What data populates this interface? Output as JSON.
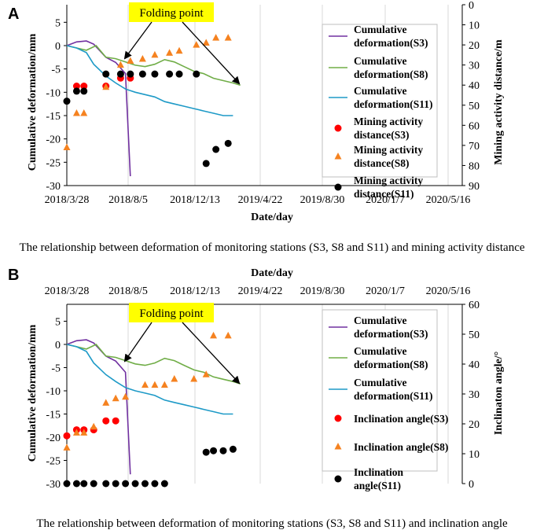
{
  "chart_data": [
    {
      "panel": "A",
      "type": "line",
      "title": "",
      "xlabel": "Date/day",
      "ylabel": "Cumulative deformation/mm",
      "y2label": "Mining activity distance/m",
      "x_tick_labels": [
        "2018/3/28",
        "2018/8/5",
        "2018/12/13",
        "2019/4/22",
        "2019/8/30",
        "2020/1/7",
        "2020/5/16"
      ],
      "xlim": [
        0,
        780
      ],
      "ylim": [
        -30,
        10
      ],
      "y_ticks": [
        5,
        0,
        -5,
        -10,
        -15,
        -20,
        -25,
        -30
      ],
      "y2lim": [
        0,
        90
      ],
      "y2_ticks": [
        0,
        10,
        20,
        30,
        40,
        50,
        60,
        70,
        80,
        90
      ],
      "annotation": "Folding point",
      "caption": "The relationship between deformation of monitoring stations (S3, S8 and S11) and mining activity distance",
      "series": [
        {
          "name": "Cumulative deformation(S3)",
          "axis": "left",
          "kind": "line",
          "color": "#7030A0",
          "x": [
            0,
            20,
            40,
            55,
            80,
            100,
            120,
            130
          ],
          "y": [
            0,
            0.8,
            1,
            0.3,
            -2.5,
            -3.6,
            -6,
            -28
          ]
        },
        {
          "name": "Cumulative deformation(S8)",
          "axis": "left",
          "kind": "line",
          "color": "#70AD47",
          "x": [
            0,
            20,
            40,
            60,
            80,
            100,
            120,
            140,
            160,
            180,
            200,
            220,
            240,
            260,
            280,
            300,
            320,
            340,
            355
          ],
          "y": [
            0,
            -0.5,
            -1,
            0,
            -2.5,
            -2.8,
            -3.5,
            -4.2,
            -4.5,
            -4,
            -3,
            -3.5,
            -4.5,
            -5.5,
            -6,
            -7,
            -7.5,
            -8,
            -8.5
          ]
        },
        {
          "name": "Cumulative deformation(S11)",
          "axis": "left",
          "kind": "line",
          "color": "#1E9AC7",
          "x": [
            0,
            20,
            40,
            55,
            80,
            100,
            120,
            140,
            160,
            180,
            200,
            220,
            240,
            260,
            280,
            300,
            320,
            340
          ],
          "y": [
            0,
            -0.5,
            -1.5,
            -4,
            -6.5,
            -8,
            -9.3,
            -10,
            -10.5,
            -11,
            -12,
            -12.5,
            -13,
            -13.5,
            -14,
            -14.5,
            -15,
            -15
          ]
        },
        {
          "name": "Mining activity distance(S3)",
          "axis": "right",
          "kind": "scatter",
          "marker": "circle",
          "color": "#FF0000",
          "x": [
            20,
            35,
            80,
            110,
            130
          ],
          "y": [
            40.5,
            40.5,
            40.5,
            36.5,
            36.5
          ]
        },
        {
          "name": "Mining activity distance(S8)",
          "axis": "right",
          "kind": "scatter",
          "marker": "triangle",
          "color": "#F58220",
          "x": [
            0,
            20,
            35,
            80,
            110,
            130,
            155,
            180,
            210,
            230,
            265,
            285,
            305,
            330
          ],
          "y": [
            71,
            54,
            54,
            41,
            30,
            28,
            27,
            25,
            24,
            23,
            20,
            19,
            16.5,
            16.5
          ]
        },
        {
          "name": "Mining activity distance(S11)",
          "axis": "right",
          "kind": "scatter",
          "marker": "circle",
          "color": "#000000",
          "x": [
            0,
            20,
            35,
            80,
            110,
            130,
            155,
            180,
            210,
            230,
            265,
            285,
            305,
            330
          ],
          "y": [
            48,
            43,
            43,
            34.5,
            34.5,
            34.5,
            34.5,
            34.5,
            34.5,
            34.5,
            34.5,
            79,
            72,
            69
          ]
        }
      ]
    },
    {
      "panel": "B",
      "type": "line",
      "title": "",
      "xlabel": "Date/day",
      "ylabel": "Cumulative deformation/mm",
      "y2label": "Inclinaton angle/°",
      "x_tick_labels": [
        "2018/3/28",
        "2018/8/5",
        "2018/12/13",
        "2019/4/22",
        "2019/8/30",
        "2020/1/7",
        "2020/5/16"
      ],
      "xlim": [
        0,
        780
      ],
      "ylim": [
        -30,
        10
      ],
      "y_ticks": [
        5,
        0,
        -5,
        -10,
        -15,
        -20,
        -25,
        -30
      ],
      "y2lim": [
        0,
        60
      ],
      "y2_ticks": [
        0,
        10,
        20,
        30,
        40,
        50,
        60
      ],
      "annotation": "Folding point",
      "caption": "The relationship between deformation of monitoring stations (S3, S8 and S11) and inclination angle",
      "series": [
        {
          "name": "Cumulative deformation(S3)",
          "axis": "left",
          "kind": "line",
          "color": "#7030A0",
          "x": [
            0,
            20,
            40,
            55,
            80,
            100,
            120,
            130
          ],
          "y": [
            0,
            0.8,
            1,
            0.3,
            -2.5,
            -3.6,
            -6,
            -28
          ]
        },
        {
          "name": "Cumulative deformation(S8)",
          "axis": "left",
          "kind": "line",
          "color": "#70AD47",
          "x": [
            0,
            20,
            40,
            60,
            80,
            100,
            120,
            140,
            160,
            180,
            200,
            220,
            240,
            260,
            280,
            300,
            320,
            340,
            355
          ],
          "y": [
            0,
            -0.5,
            -1,
            0,
            -2.5,
            -2.8,
            -3.5,
            -4.2,
            -4.5,
            -4,
            -3,
            -3.5,
            -4.5,
            -5.5,
            -6,
            -7,
            -7.5,
            -8,
            -8.5
          ]
        },
        {
          "name": "Cumulative deformation(S11)",
          "axis": "left",
          "kind": "line",
          "color": "#1E9AC7",
          "x": [
            0,
            20,
            40,
            55,
            80,
            100,
            120,
            140,
            160,
            180,
            200,
            220,
            240,
            260,
            280,
            300,
            320,
            340
          ],
          "y": [
            0,
            -0.5,
            -1.5,
            -4,
            -6.5,
            -8,
            -9.3,
            -10,
            -10.5,
            -11,
            -12,
            -12.5,
            -13,
            -13.5,
            -14,
            -14.5,
            -15,
            -15
          ]
        },
        {
          "name": "Inclination angle(S3)",
          "axis": "right",
          "kind": "scatter",
          "marker": "circle",
          "color": "#FF0000",
          "x": [
            0,
            20,
            35,
            55,
            80,
            100
          ],
          "y": [
            16,
            18,
            18,
            18,
            21,
            21
          ]
        },
        {
          "name": "Inclination angle(S8)",
          "axis": "right",
          "kind": "scatter",
          "marker": "triangle",
          "color": "#F58220",
          "x": [
            0,
            20,
            35,
            55,
            80,
            100,
            120,
            160,
            180,
            200,
            220,
            260,
            285,
            300,
            330
          ],
          "y": [
            12,
            17,
            17,
            19,
            27,
            28.5,
            29,
            33,
            33,
            33,
            35,
            35,
            36.5,
            49.5,
            49.5
          ]
        },
        {
          "name": "Inclination angle(S11)",
          "axis": "right",
          "kind": "scatter",
          "marker": "circle",
          "color": "#000000",
          "x": [
            0,
            20,
            35,
            55,
            80,
            100,
            120,
            140,
            160,
            180,
            200,
            285,
            300,
            320,
            340
          ],
          "y": [
            0,
            0,
            0,
            0,
            0,
            0,
            0,
            0,
            0,
            0,
            0,
            10.5,
            11,
            11,
            11.5
          ]
        }
      ]
    }
  ]
}
